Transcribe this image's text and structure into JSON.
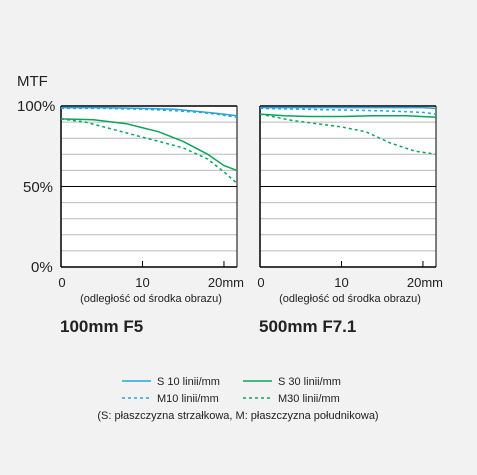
{
  "axis": {
    "y_title": "MTF",
    "y_ticks": [
      "100%",
      "50%",
      "0%"
    ],
    "x_ticks": [
      "0",
      "10",
      "20mm"
    ],
    "x_caption": "(odległość od środka obrazu)"
  },
  "legend": {
    "s10": "S 10 linii/mm",
    "m10": "M10 linii/mm",
    "s30": "S 30 linii/mm",
    "m30": "M30 linii/mm",
    "note": "(S: płaszczyzna strzałkowa, M: płaszczyzna południkowa)"
  },
  "colors": {
    "blue": "#29a3dc",
    "green": "#0ba45a",
    "grid": "#bbbbbb",
    "axis": "#000000"
  },
  "chart_data": [
    {
      "type": "line",
      "title": "100mm F5",
      "xlabel": "(odległość od środka obrazu)",
      "ylabel": "MTF",
      "xlim": [
        0,
        21.6
      ],
      "ylim": [
        0,
        100
      ],
      "grid": true,
      "series": [
        {
          "name": "S 10 linii/mm",
          "color": "blue",
          "dash": false,
          "x": [
            0,
            5,
            10,
            14,
            17,
            19,
            21.6
          ],
          "y": [
            99,
            99,
            98.5,
            98,
            96.5,
            95.5,
            94
          ]
        },
        {
          "name": "M10 linii/mm",
          "color": "blue",
          "dash": true,
          "x": [
            0,
            5,
            10,
            14,
            17,
            19,
            21.6
          ],
          "y": [
            98.5,
            98.5,
            98,
            97,
            96,
            95,
            93
          ]
        },
        {
          "name": "S 30 linii/mm",
          "color": "green",
          "dash": false,
          "x": [
            0,
            4,
            8,
            12,
            15,
            18,
            20,
            21.6
          ],
          "y": [
            92,
            91.5,
            89,
            84,
            78,
            70,
            63,
            60
          ]
        },
        {
          "name": "M30 linii/mm",
          "color": "green",
          "dash": true,
          "x": [
            0,
            3,
            6,
            9,
            12,
            15,
            18,
            20,
            21.6
          ],
          "y": [
            92,
            90,
            86,
            82,
            78,
            74,
            67,
            59,
            52
          ]
        }
      ]
    },
    {
      "type": "line",
      "title": "500mm F7.1",
      "xlabel": "(odległość od środka obrazu)",
      "ylabel": "MTF",
      "xlim": [
        0,
        21.6
      ],
      "ylim": [
        0,
        100
      ],
      "grid": true,
      "series": [
        {
          "name": "S 10 linii/mm",
          "color": "blue",
          "dash": false,
          "x": [
            0,
            5,
            10,
            15,
            20,
            21.6
          ],
          "y": [
            99,
            99,
            99,
            99,
            99,
            98.5
          ]
        },
        {
          "name": "M10 linii/mm",
          "color": "blue",
          "dash": true,
          "x": [
            0,
            5,
            10,
            15,
            20,
            21.6
          ],
          "y": [
            98.5,
            98,
            97.5,
            97,
            96,
            95
          ]
        },
        {
          "name": "S 30 linii/mm",
          "color": "green",
          "dash": false,
          "x": [
            0,
            3,
            6,
            10,
            14,
            18,
            21.6
          ],
          "y": [
            95,
            94,
            93.5,
            93.5,
            94,
            94,
            93
          ]
        },
        {
          "name": "M30 linii/mm",
          "color": "green",
          "dash": true,
          "x": [
            0,
            2,
            4,
            7,
            10,
            13,
            16,
            19,
            21.6
          ],
          "y": [
            95,
            93,
            91,
            89,
            87,
            84,
            77,
            72,
            70
          ]
        }
      ]
    }
  ]
}
